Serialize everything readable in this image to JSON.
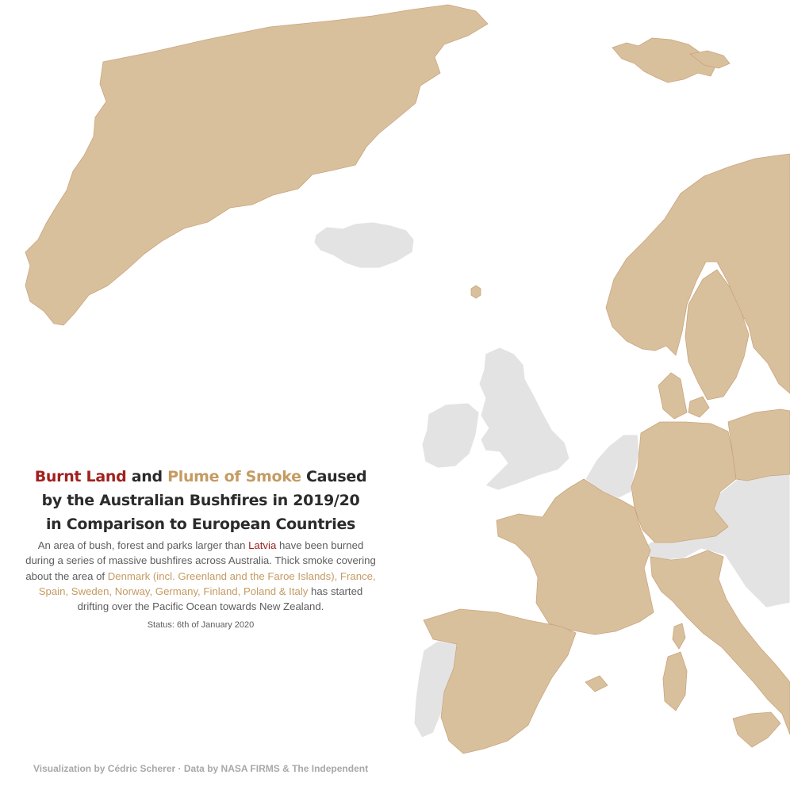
{
  "colors": {
    "burnt": "#a0211e",
    "smoke": "#d9c09c",
    "smoke_text": "#c59b63",
    "other_land": "#e3e3e3",
    "background": "#ffffff"
  },
  "title": {
    "burnt": "Burnt Land",
    "and": "and",
    "smoke": "Plume of Smoke",
    "rest1": "Caused",
    "line2": "by the Australian Bushfires in 2019/20",
    "line3": "in Comparison to European Countries"
  },
  "description": {
    "part1": "An area of bush, forest and parks larger than",
    "latvia": "Latvia",
    "part2": "have been burned during a series of massive bushfires across Australia. Thick smoke covering about the area of",
    "countries": "Denmark (incl. Greenland and the Faroe Islands), France, Spain, Sweden, Norway, Germany, Finland, Poland & Italy",
    "part3": "has started drifting over the Pacific Ocean towards New Zealand."
  },
  "status": "Status: 6th of January 2020",
  "credit": "Visualization by Cédric Scherer · Data by NASA FIRMS & The Independent",
  "map": {
    "smoke_regions": [
      "Greenland",
      "Svalbard",
      "Faroe Islands",
      "Norway",
      "Sweden",
      "Finland",
      "Denmark",
      "Germany",
      "Poland",
      "France",
      "Spain",
      "Italy",
      "Corsica",
      "Sardinia",
      "Sicily",
      "Balearic Islands"
    ],
    "other_regions": [
      "Iceland",
      "United Kingdom",
      "Ireland",
      "Portugal",
      "Belgium",
      "Netherlands",
      "Switzerland",
      "Austria",
      "Czechia",
      "Slovenia",
      "Croatia",
      "Luxembourg"
    ]
  }
}
